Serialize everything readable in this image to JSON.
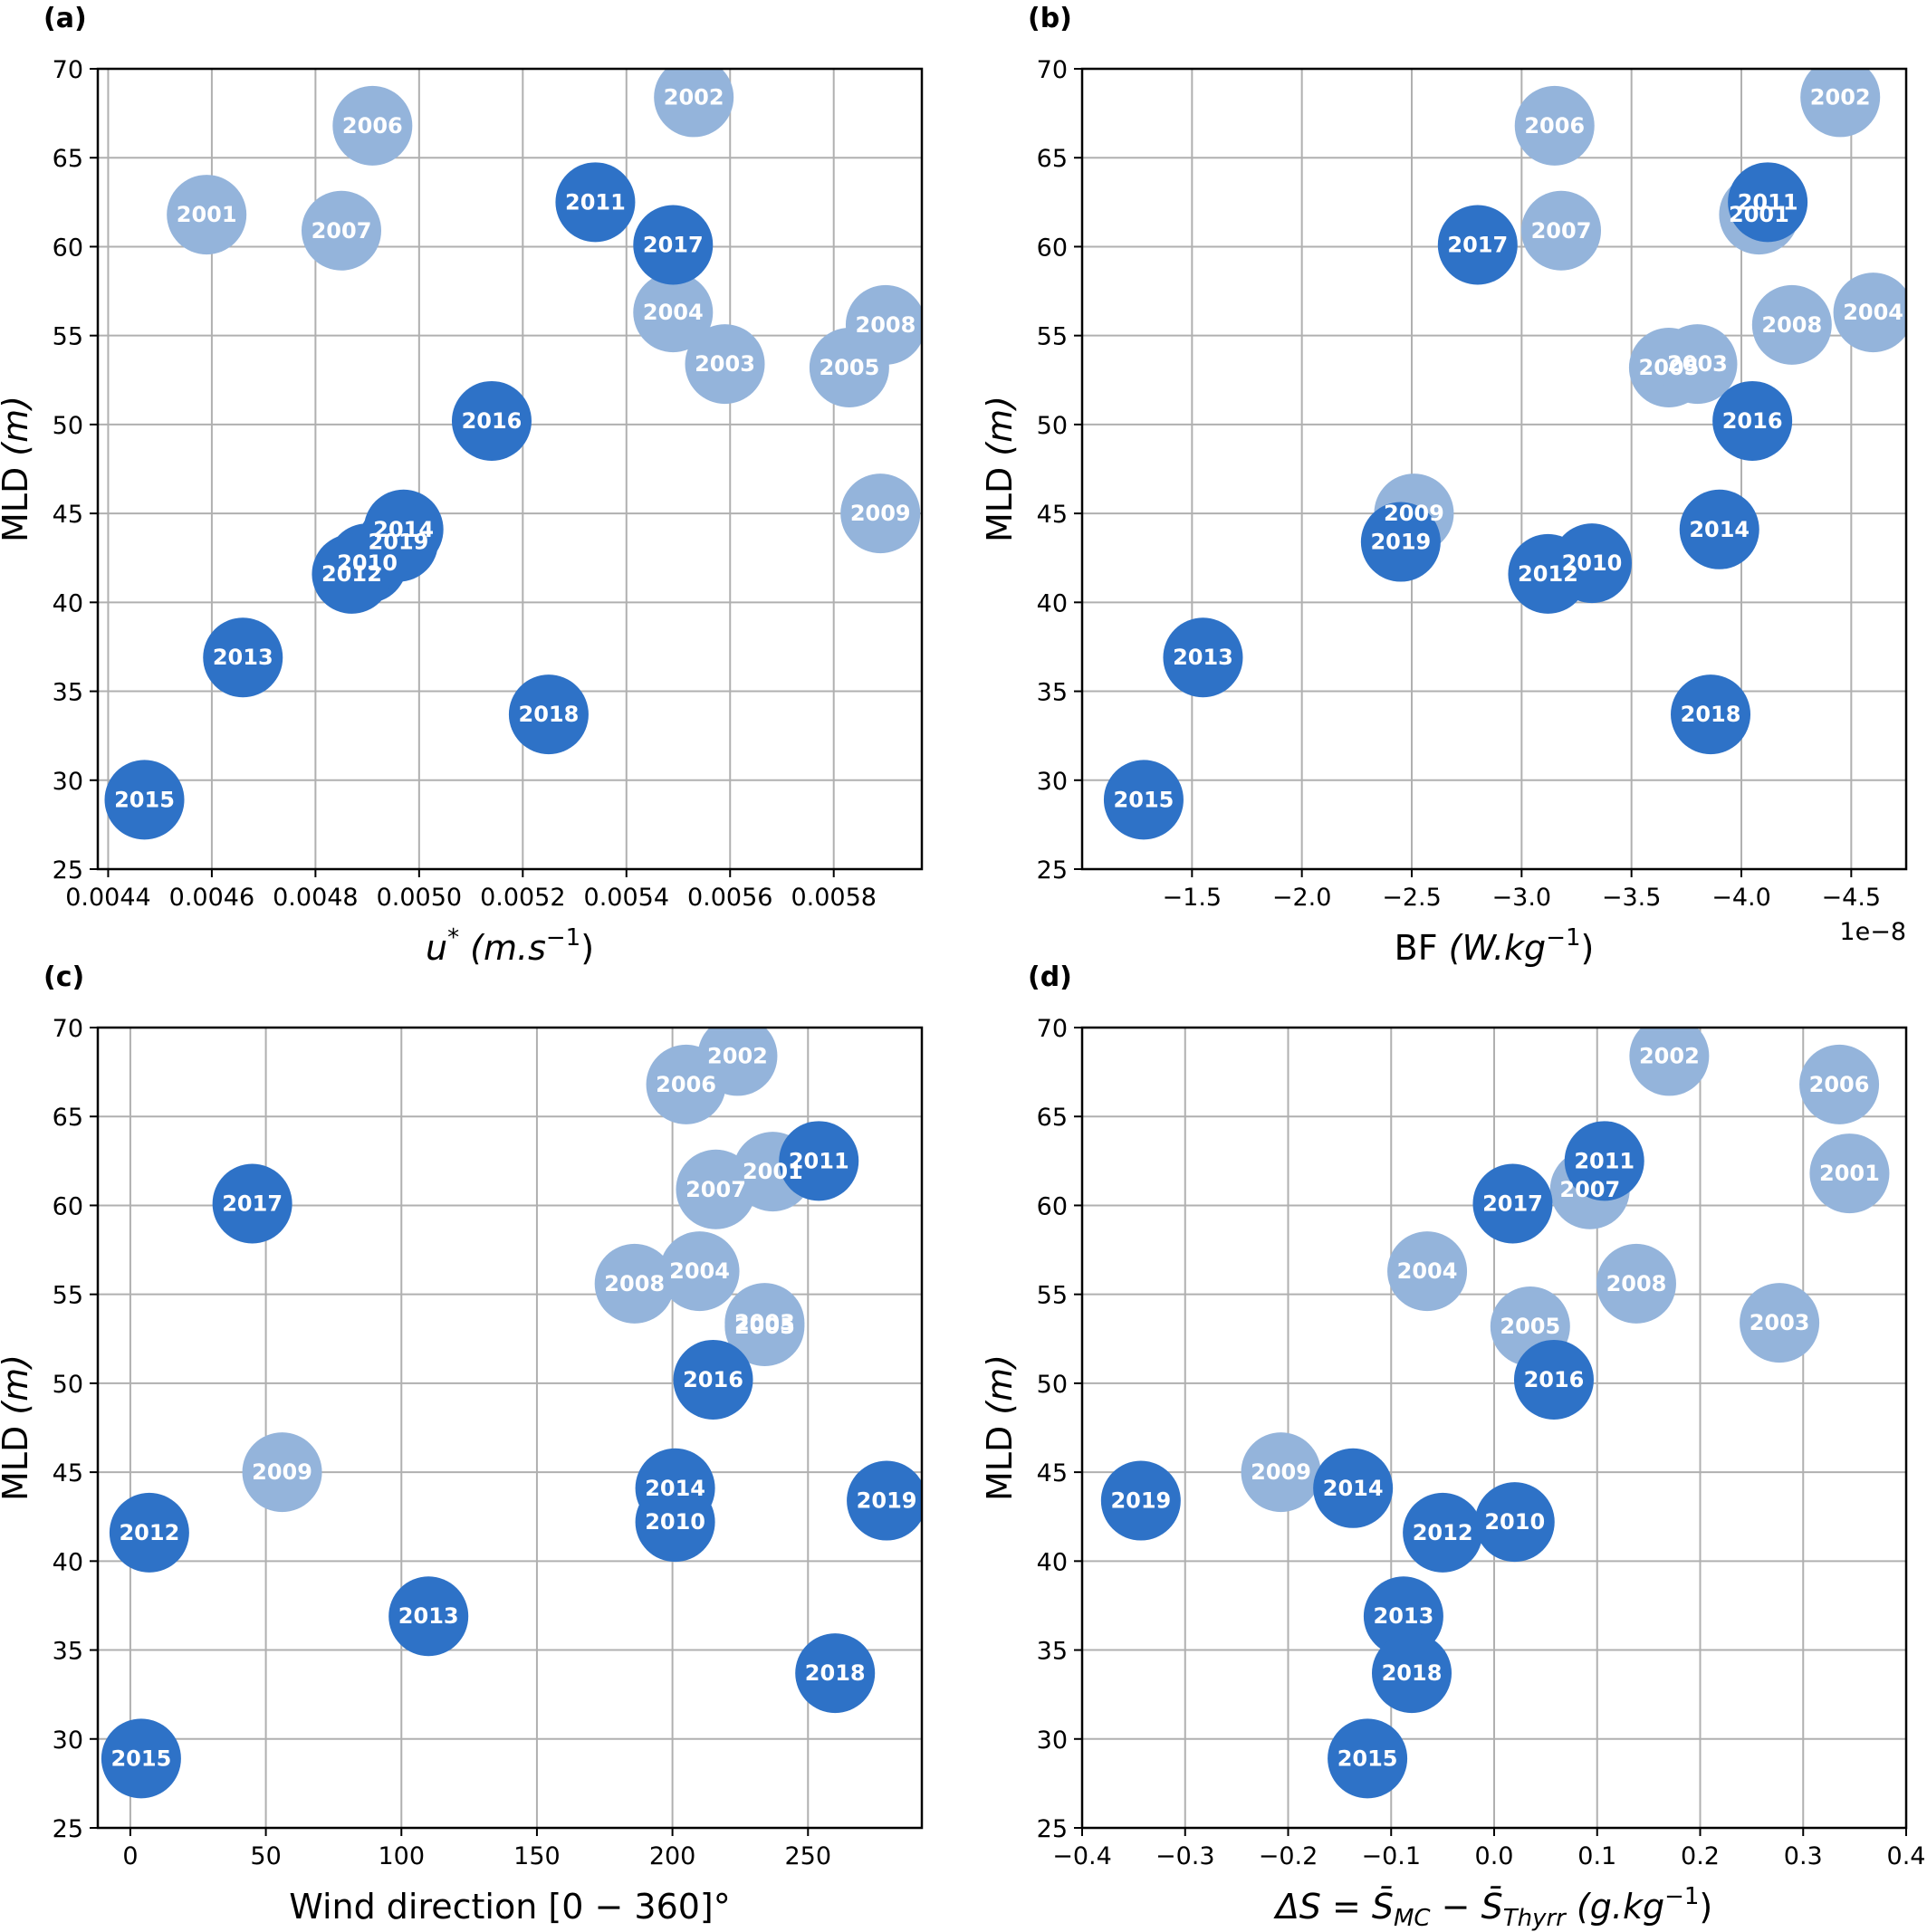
{
  "colors": {
    "dark_series": "#2e72c7",
    "light_series": "#94b4db"
  },
  "chart_data": [
    {
      "type": "scatter",
      "panel_label": "(a)",
      "xlabel_main": "u",
      "xlabel_sup": "*",
      "xlabel_unit": "(m.s",
      "xlabel_unit_sup": "−1",
      "xlabel_close": ")",
      "ylabel": "MLD",
      "ylabel_unit": "(m)",
      "xlim": [
        0.00438,
        0.00597
      ],
      "ylim": [
        25,
        70
      ],
      "xticks": [
        0.0044,
        0.0046,
        0.0048,
        0.005,
        0.0052,
        0.0054,
        0.0056,
        0.0058
      ],
      "xtick_labels": [
        "0.0044",
        "0.0046",
        "0.0048",
        "0.0050",
        "0.0052",
        "0.0054",
        "0.0056",
        "0.0058"
      ],
      "yticks": [
        25,
        30,
        35,
        40,
        45,
        50,
        55,
        60,
        65,
        70
      ],
      "grid": true,
      "points": [
        {
          "label": "2001",
          "x": 0.00459,
          "y": 61.8,
          "group": "light"
        },
        {
          "label": "2006",
          "x": 0.00491,
          "y": 66.8,
          "group": "light"
        },
        {
          "label": "2007",
          "x": 0.00485,
          "y": 60.9,
          "group": "light"
        },
        {
          "label": "2002",
          "x": 0.00553,
          "y": 68.4,
          "group": "light"
        },
        {
          "label": "2004",
          "x": 0.00549,
          "y": 56.3,
          "group": "light"
        },
        {
          "label": "2003",
          "x": 0.00559,
          "y": 53.4,
          "group": "light"
        },
        {
          "label": "2005",
          "x": 0.00583,
          "y": 53.2,
          "group": "light"
        },
        {
          "label": "2008",
          "x": 0.0059,
          "y": 55.6,
          "group": "light"
        },
        {
          "label": "2009",
          "x": 0.00589,
          "y": 45.0,
          "group": "light"
        },
        {
          "label": "2011",
          "x": 0.00534,
          "y": 62.5,
          "group": "dark"
        },
        {
          "label": "2017",
          "x": 0.00549,
          "y": 60.1,
          "group": "dark"
        },
        {
          "label": "2016",
          "x": 0.00514,
          "y": 50.2,
          "group": "dark"
        },
        {
          "label": "2014",
          "x": 0.00497,
          "y": 44.1,
          "group": "dark"
        },
        {
          "label": "2019",
          "x": 0.00496,
          "y": 43.4,
          "group": "dark"
        },
        {
          "label": "2010",
          "x": 0.0049,
          "y": 42.2,
          "group": "dark"
        },
        {
          "label": "2012",
          "x": 0.00487,
          "y": 41.6,
          "group": "dark"
        },
        {
          "label": "2013",
          "x": 0.00466,
          "y": 36.9,
          "group": "dark"
        },
        {
          "label": "2018",
          "x": 0.00525,
          "y": 33.7,
          "group": "dark"
        },
        {
          "label": "2015",
          "x": 0.00447,
          "y": 28.9,
          "group": "dark"
        }
      ]
    },
    {
      "type": "scatter",
      "panel_label": "(b)",
      "xlabel_main": "BF",
      "xlabel_sup": "",
      "xlabel_unit": "(W.kg",
      "xlabel_unit_sup": "−1",
      "xlabel_close": ")",
      "ylabel": "MLD",
      "ylabel_unit": "(m)",
      "offset_text": "1e−8",
      "x_inverted": true,
      "xlim": [
        -1.0,
        -4.75
      ],
      "ylim": [
        25,
        70
      ],
      "xticks": [
        -1.5,
        -2.0,
        -2.5,
        -3.0,
        -3.5,
        -4.0,
        -4.5
      ],
      "xtick_labels": [
        "−1.5",
        "−2.0",
        "−2.5",
        "−3.0",
        "−3.5",
        "−4.0",
        "−4.5"
      ],
      "yticks": [
        25,
        30,
        35,
        40,
        45,
        50,
        55,
        60,
        65,
        70
      ],
      "grid": true,
      "points": [
        {
          "label": "2002",
          "x": -4.45,
          "y": 68.4,
          "group": "light"
        },
        {
          "label": "2006",
          "x": -3.15,
          "y": 66.8,
          "group": "light"
        },
        {
          "label": "2007",
          "x": -3.18,
          "y": 60.9,
          "group": "light"
        },
        {
          "label": "2001",
          "x": -4.08,
          "y": 61.8,
          "group": "light"
        },
        {
          "label": "2004",
          "x": -4.6,
          "y": 56.3,
          "group": "light"
        },
        {
          "label": "2008",
          "x": -4.23,
          "y": 55.6,
          "group": "light"
        },
        {
          "label": "2005",
          "x": -3.67,
          "y": 53.2,
          "group": "light"
        },
        {
          "label": "2003",
          "x": -3.8,
          "y": 53.4,
          "group": "light"
        },
        {
          "label": "2009",
          "x": -2.51,
          "y": 45.0,
          "group": "light"
        },
        {
          "label": "2011",
          "x": -4.12,
          "y": 62.5,
          "group": "dark"
        },
        {
          "label": "2017",
          "x": -2.8,
          "y": 60.1,
          "group": "dark"
        },
        {
          "label": "2016",
          "x": -4.05,
          "y": 50.2,
          "group": "dark"
        },
        {
          "label": "2014",
          "x": -3.9,
          "y": 44.1,
          "group": "dark"
        },
        {
          "label": "2019",
          "x": -2.45,
          "y": 43.4,
          "group": "dark"
        },
        {
          "label": "2010",
          "x": -3.32,
          "y": 42.2,
          "group": "dark"
        },
        {
          "label": "2012",
          "x": -3.12,
          "y": 41.6,
          "group": "dark"
        },
        {
          "label": "2013",
          "x": -1.55,
          "y": 36.9,
          "group": "dark"
        },
        {
          "label": "2018",
          "x": -3.86,
          "y": 33.7,
          "group": "dark"
        },
        {
          "label": "2015",
          "x": -1.28,
          "y": 28.9,
          "group": "dark"
        }
      ]
    },
    {
      "type": "scatter",
      "panel_label": "(c)",
      "xlabel_main": "Wind direction [0 − 360]°",
      "xlabel_sup": "",
      "xlabel_unit": "",
      "xlabel_unit_sup": "",
      "xlabel_close": "",
      "ylabel": "MLD",
      "ylabel_unit": "(m)",
      "xlim": [
        -12,
        292
      ],
      "ylim": [
        25,
        70
      ],
      "xticks": [
        0,
        50,
        100,
        150,
        200,
        250
      ],
      "xtick_labels": [
        "0",
        "50",
        "100",
        "150",
        "200",
        "250"
      ],
      "yticks": [
        25,
        30,
        35,
        40,
        45,
        50,
        55,
        60,
        65,
        70
      ],
      "grid": true,
      "points": [
        {
          "label": "2002",
          "x": 224,
          "y": 68.4,
          "group": "light"
        },
        {
          "label": "2006",
          "x": 205,
          "y": 66.8,
          "group": "light"
        },
        {
          "label": "2007",
          "x": 216,
          "y": 60.9,
          "group": "light"
        },
        {
          "label": "2001",
          "x": 237,
          "y": 61.9,
          "group": "light"
        },
        {
          "label": "2004",
          "x": 210,
          "y": 56.3,
          "group": "light"
        },
        {
          "label": "2008",
          "x": 186,
          "y": 55.6,
          "group": "light"
        },
        {
          "label": "2003",
          "x": 234,
          "y": 53.4,
          "group": "light"
        },
        {
          "label": "2005",
          "x": 234,
          "y": 53.2,
          "group": "light"
        },
        {
          "label": "2009",
          "x": 56,
          "y": 45.0,
          "group": "light"
        },
        {
          "label": "2011",
          "x": 254,
          "y": 62.5,
          "group": "dark"
        },
        {
          "label": "2017",
          "x": 45,
          "y": 60.1,
          "group": "dark"
        },
        {
          "label": "2016",
          "x": 215,
          "y": 50.2,
          "group": "dark"
        },
        {
          "label": "2014",
          "x": 201,
          "y": 44.1,
          "group": "dark"
        },
        {
          "label": "2010",
          "x": 201,
          "y": 42.2,
          "group": "dark"
        },
        {
          "label": "2019",
          "x": 279,
          "y": 43.4,
          "group": "dark"
        },
        {
          "label": "2012",
          "x": 7,
          "y": 41.6,
          "group": "dark"
        },
        {
          "label": "2013",
          "x": 110,
          "y": 36.9,
          "group": "dark"
        },
        {
          "label": "2018",
          "x": 260,
          "y": 33.7,
          "group": "dark"
        },
        {
          "label": "2015",
          "x": 4,
          "y": 28.9,
          "group": "dark"
        }
      ]
    },
    {
      "type": "scatter",
      "panel_label": "(d)",
      "xlabel_main": "ΔS = S̄",
      "xlabel_sub1": "MC",
      "xlabel_mid": " − S̄",
      "xlabel_sub2": "Thyrr",
      "xlabel_unit": "  (g.kg",
      "xlabel_unit_sup": "−1",
      "xlabel_close": ")",
      "ylabel": "MLD",
      "ylabel_unit": "(m)",
      "xlim": [
        -0.4,
        0.4
      ],
      "ylim": [
        25,
        70
      ],
      "xticks": [
        -0.4,
        -0.3,
        -0.2,
        -0.1,
        0.0,
        0.1,
        0.2,
        0.3,
        0.4
      ],
      "xtick_labels": [
        "−0.4",
        "−0.3",
        "−0.2",
        "−0.1",
        "0.0",
        "0.1",
        "0.2",
        "0.3",
        "0.4"
      ],
      "yticks": [
        25,
        30,
        35,
        40,
        45,
        50,
        55,
        60,
        65,
        70
      ],
      "grid": true,
      "points": [
        {
          "label": "2002",
          "x": 0.17,
          "y": 68.4,
          "group": "light"
        },
        {
          "label": "2006",
          "x": 0.335,
          "y": 66.8,
          "group": "light"
        },
        {
          "label": "2001",
          "x": 0.345,
          "y": 61.8,
          "group": "light"
        },
        {
          "label": "2007",
          "x": 0.093,
          "y": 60.9,
          "group": "light"
        },
        {
          "label": "2004",
          "x": -0.065,
          "y": 56.3,
          "group": "light"
        },
        {
          "label": "2008",
          "x": 0.138,
          "y": 55.6,
          "group": "light"
        },
        {
          "label": "2005",
          "x": 0.035,
          "y": 53.2,
          "group": "light"
        },
        {
          "label": "2003",
          "x": 0.277,
          "y": 53.4,
          "group": "light"
        },
        {
          "label": "2009",
          "x": -0.207,
          "y": 45.0,
          "group": "light"
        },
        {
          "label": "2011",
          "x": 0.107,
          "y": 62.5,
          "group": "dark"
        },
        {
          "label": "2017",
          "x": 0.018,
          "y": 60.1,
          "group": "dark"
        },
        {
          "label": "2016",
          "x": 0.058,
          "y": 50.2,
          "group": "dark"
        },
        {
          "label": "2014",
          "x": -0.137,
          "y": 44.1,
          "group": "dark"
        },
        {
          "label": "2019",
          "x": -0.343,
          "y": 43.4,
          "group": "dark"
        },
        {
          "label": "2010",
          "x": 0.02,
          "y": 42.2,
          "group": "dark"
        },
        {
          "label": "2012",
          "x": -0.05,
          "y": 41.6,
          "group": "dark"
        },
        {
          "label": "2013",
          "x": -0.088,
          "y": 36.9,
          "group": "dark"
        },
        {
          "label": "2018",
          "x": -0.08,
          "y": 33.7,
          "group": "dark"
        },
        {
          "label": "2015",
          "x": -0.123,
          "y": 28.9,
          "group": "dark"
        }
      ]
    }
  ]
}
